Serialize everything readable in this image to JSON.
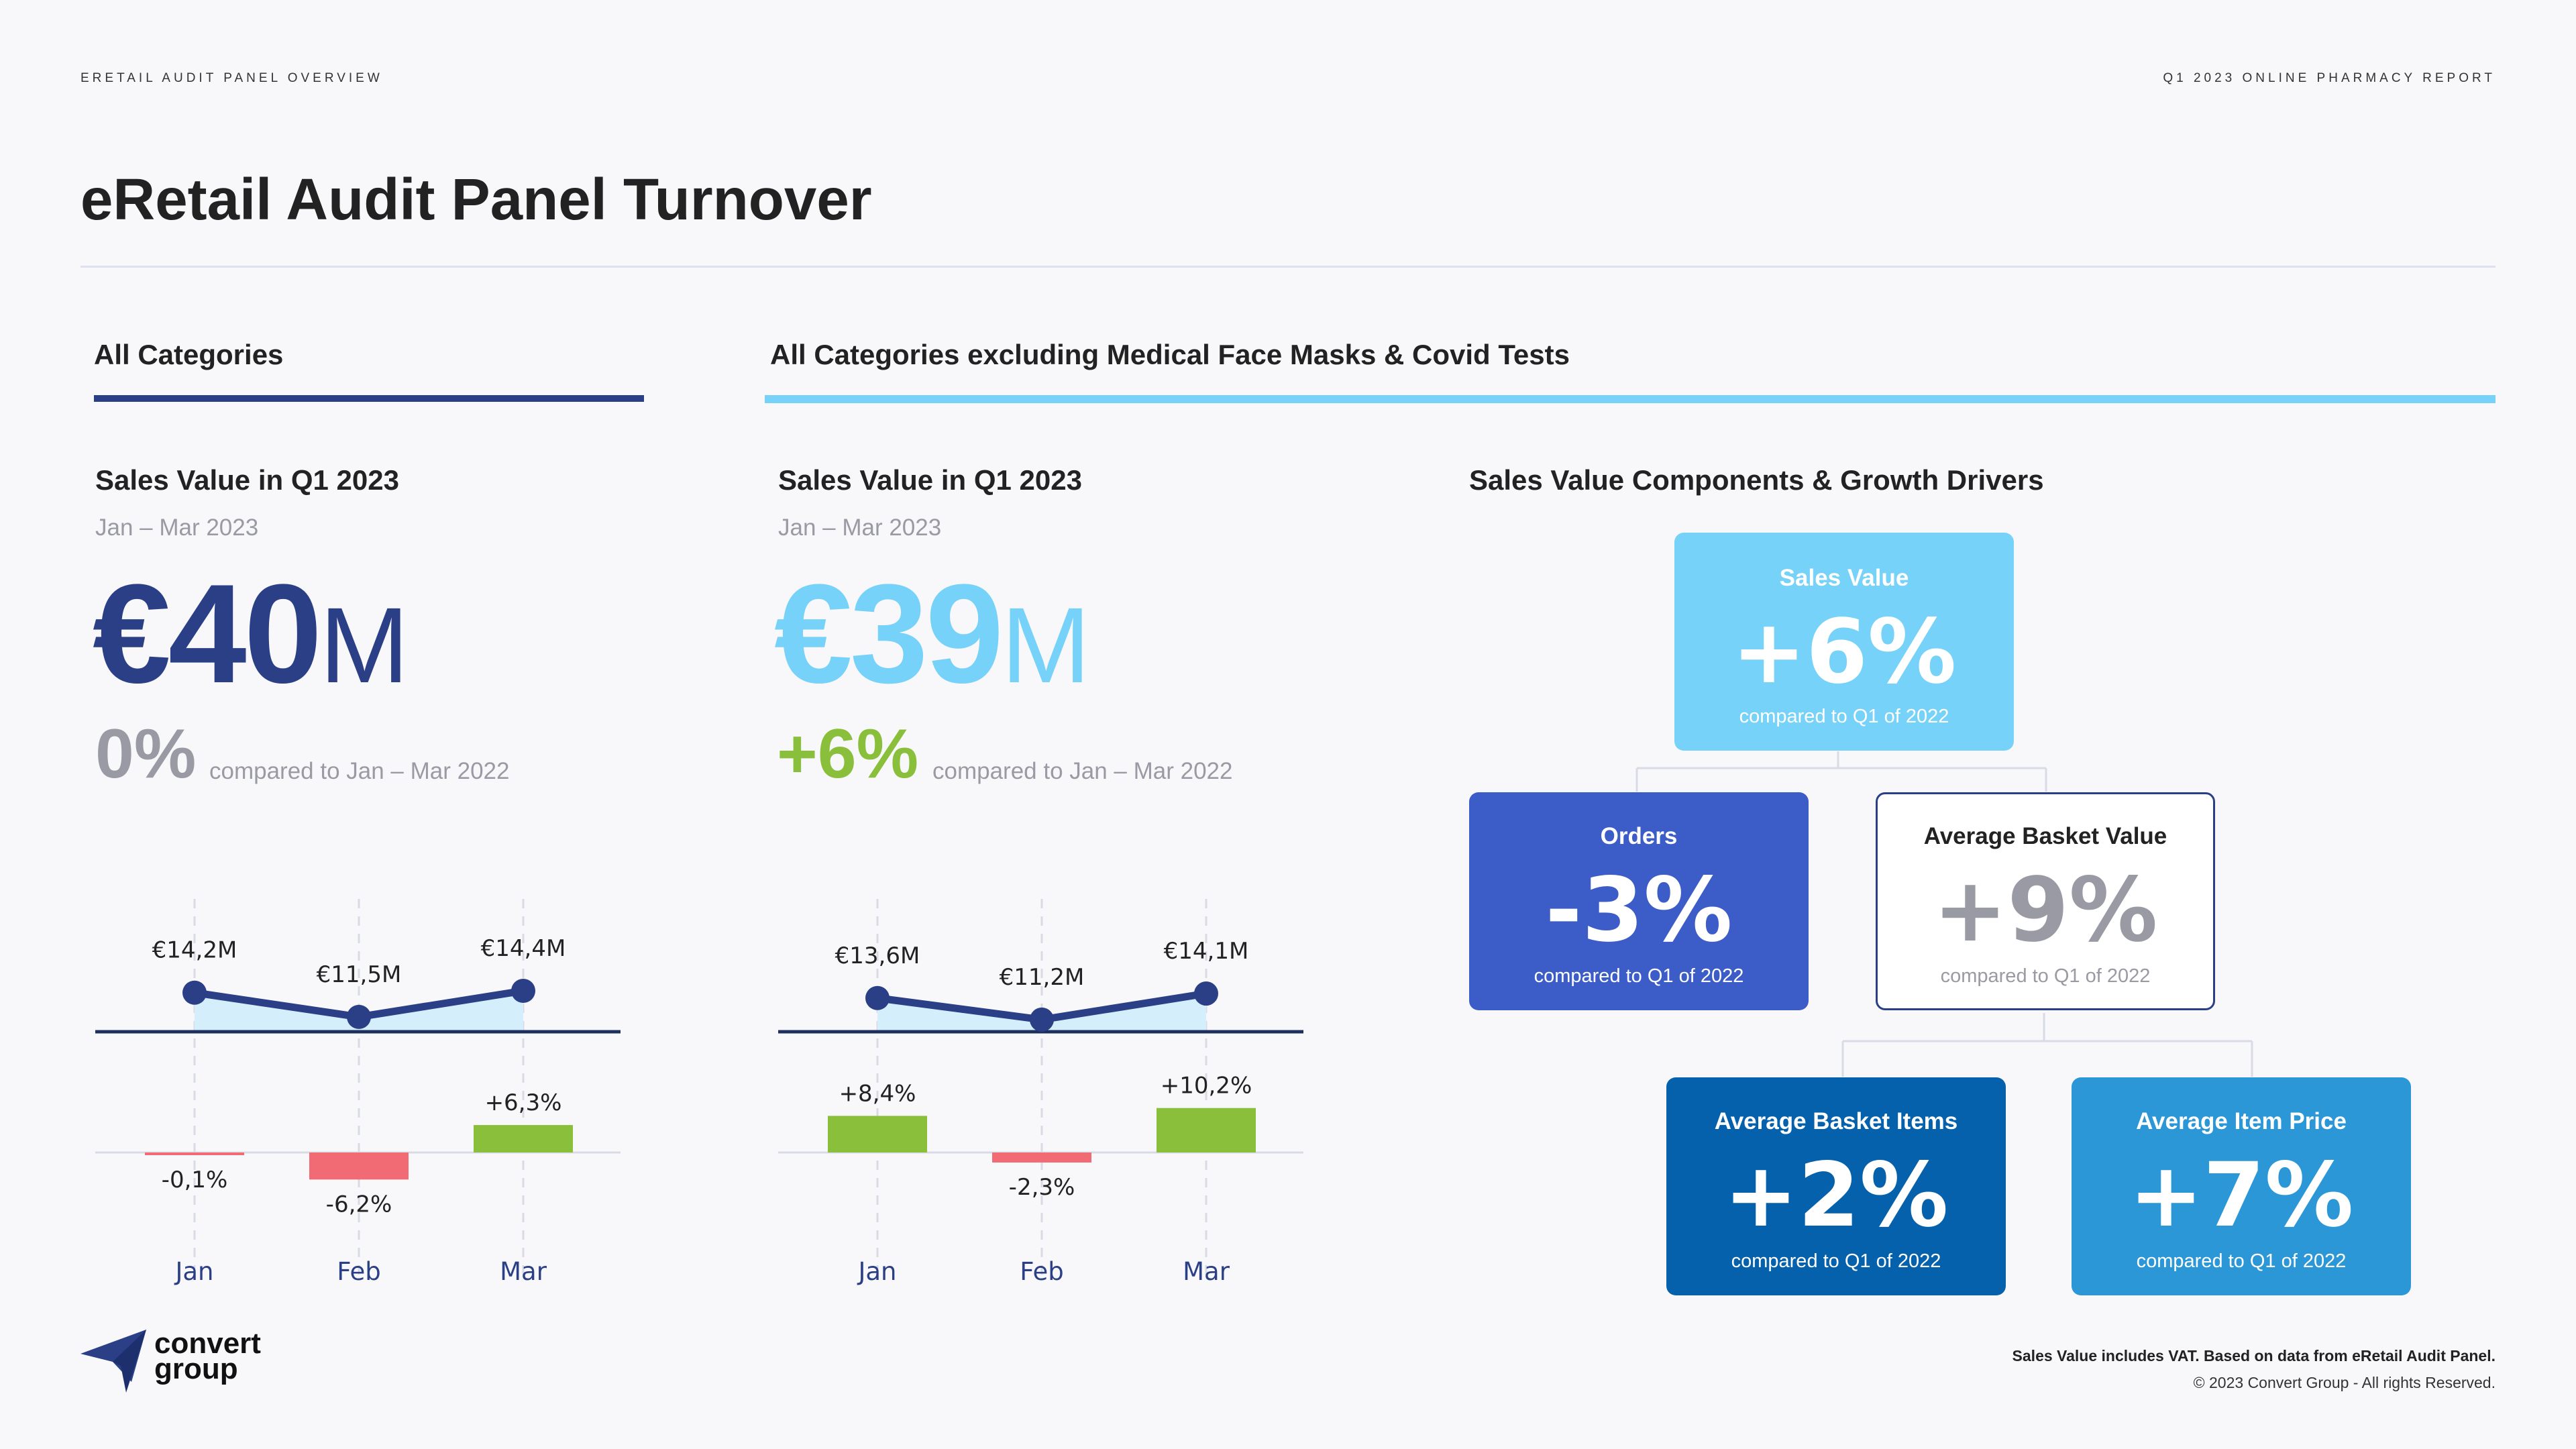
{
  "header": {
    "left": "ERETAIL AUDIT PANEL OVERVIEW",
    "right": "Q1 2023 ONLINE PHARMACY REPORT",
    "title": "eRetail Audit Panel Turnover"
  },
  "sections": {
    "all": "All Categories",
    "excl": "All Categories excluding Medical Face Masks & Covid Tests",
    "drivers": "Sales Value Components & Growth Drivers"
  },
  "panel1": {
    "subtitle": "Sales Value in Q1 2023",
    "date": "Jan – Mar 2023",
    "value": "€40",
    "unit": "M",
    "change": "0%",
    "compare": "compared to Jan – Mar 2022"
  },
  "panel2": {
    "subtitle": "Sales Value in Q1 2023",
    "date": "Jan – Mar 2023",
    "value": "€39",
    "unit": "M",
    "change": "+6%",
    "compare": "compared to Jan – Mar 2022"
  },
  "drivers": {
    "sales_value": {
      "title": "Sales Value",
      "value": "+6%",
      "compare": "compared to Q1 of 2022"
    },
    "orders": {
      "title": "Orders",
      "value": "-3%",
      "compare": "compared to Q1 of 2022"
    },
    "basket_value": {
      "title": "Average Basket Value",
      "value": "+9%",
      "compare": "compared to Q1 of 2022"
    },
    "basket_items": {
      "title": "Average Basket Items",
      "value": "+2%",
      "compare": "compared to Q1 of 2022"
    },
    "item_price": {
      "title": "Average Item Price",
      "value": "+7%",
      "compare": "compared to Q1 of 2022"
    }
  },
  "footer": {
    "note": "Sales Value includes VAT. Based on data from eRetail Audit Panel.",
    "copyright": "© 2023 Convert Group - All rights Reserved.",
    "logo_text_1": "convert",
    "logo_text_2": "group"
  },
  "colors": {
    "navy": "#2b3f87",
    "light_blue": "#76d2f8",
    "area": "#d4eefb",
    "green": "#8abf3b",
    "red": "#f06b73",
    "grey": "#9a9aa4"
  },
  "chart_data": [
    {
      "type": "line",
      "categories": [
        "Jan",
        "Feb",
        "Mar"
      ],
      "series": [
        {
          "values": [
            14.2,
            11.5,
            14.4
          ]
        }
      ],
      "labels": [
        "€14,2M",
        "€11,5M",
        "€14,4M"
      ],
      "growth": {
        "type": "bar",
        "values": [
          -0.1,
          -6.2,
          6.3
        ],
        "labels": [
          "-0,1%",
          "-6,2%",
          "+6,3%"
        ]
      }
    },
    {
      "type": "line",
      "categories": [
        "Jan",
        "Feb",
        "Mar"
      ],
      "series": [
        {
          "values": [
            13.6,
            11.2,
            14.1
          ]
        }
      ],
      "labels": [
        "€13,6M",
        "€11,2M",
        "€14,1M"
      ],
      "growth": {
        "type": "bar",
        "values": [
          8.4,
          -2.3,
          10.2
        ],
        "labels": [
          "+8,4%",
          "-2,3%",
          "+10,2%"
        ]
      }
    }
  ]
}
